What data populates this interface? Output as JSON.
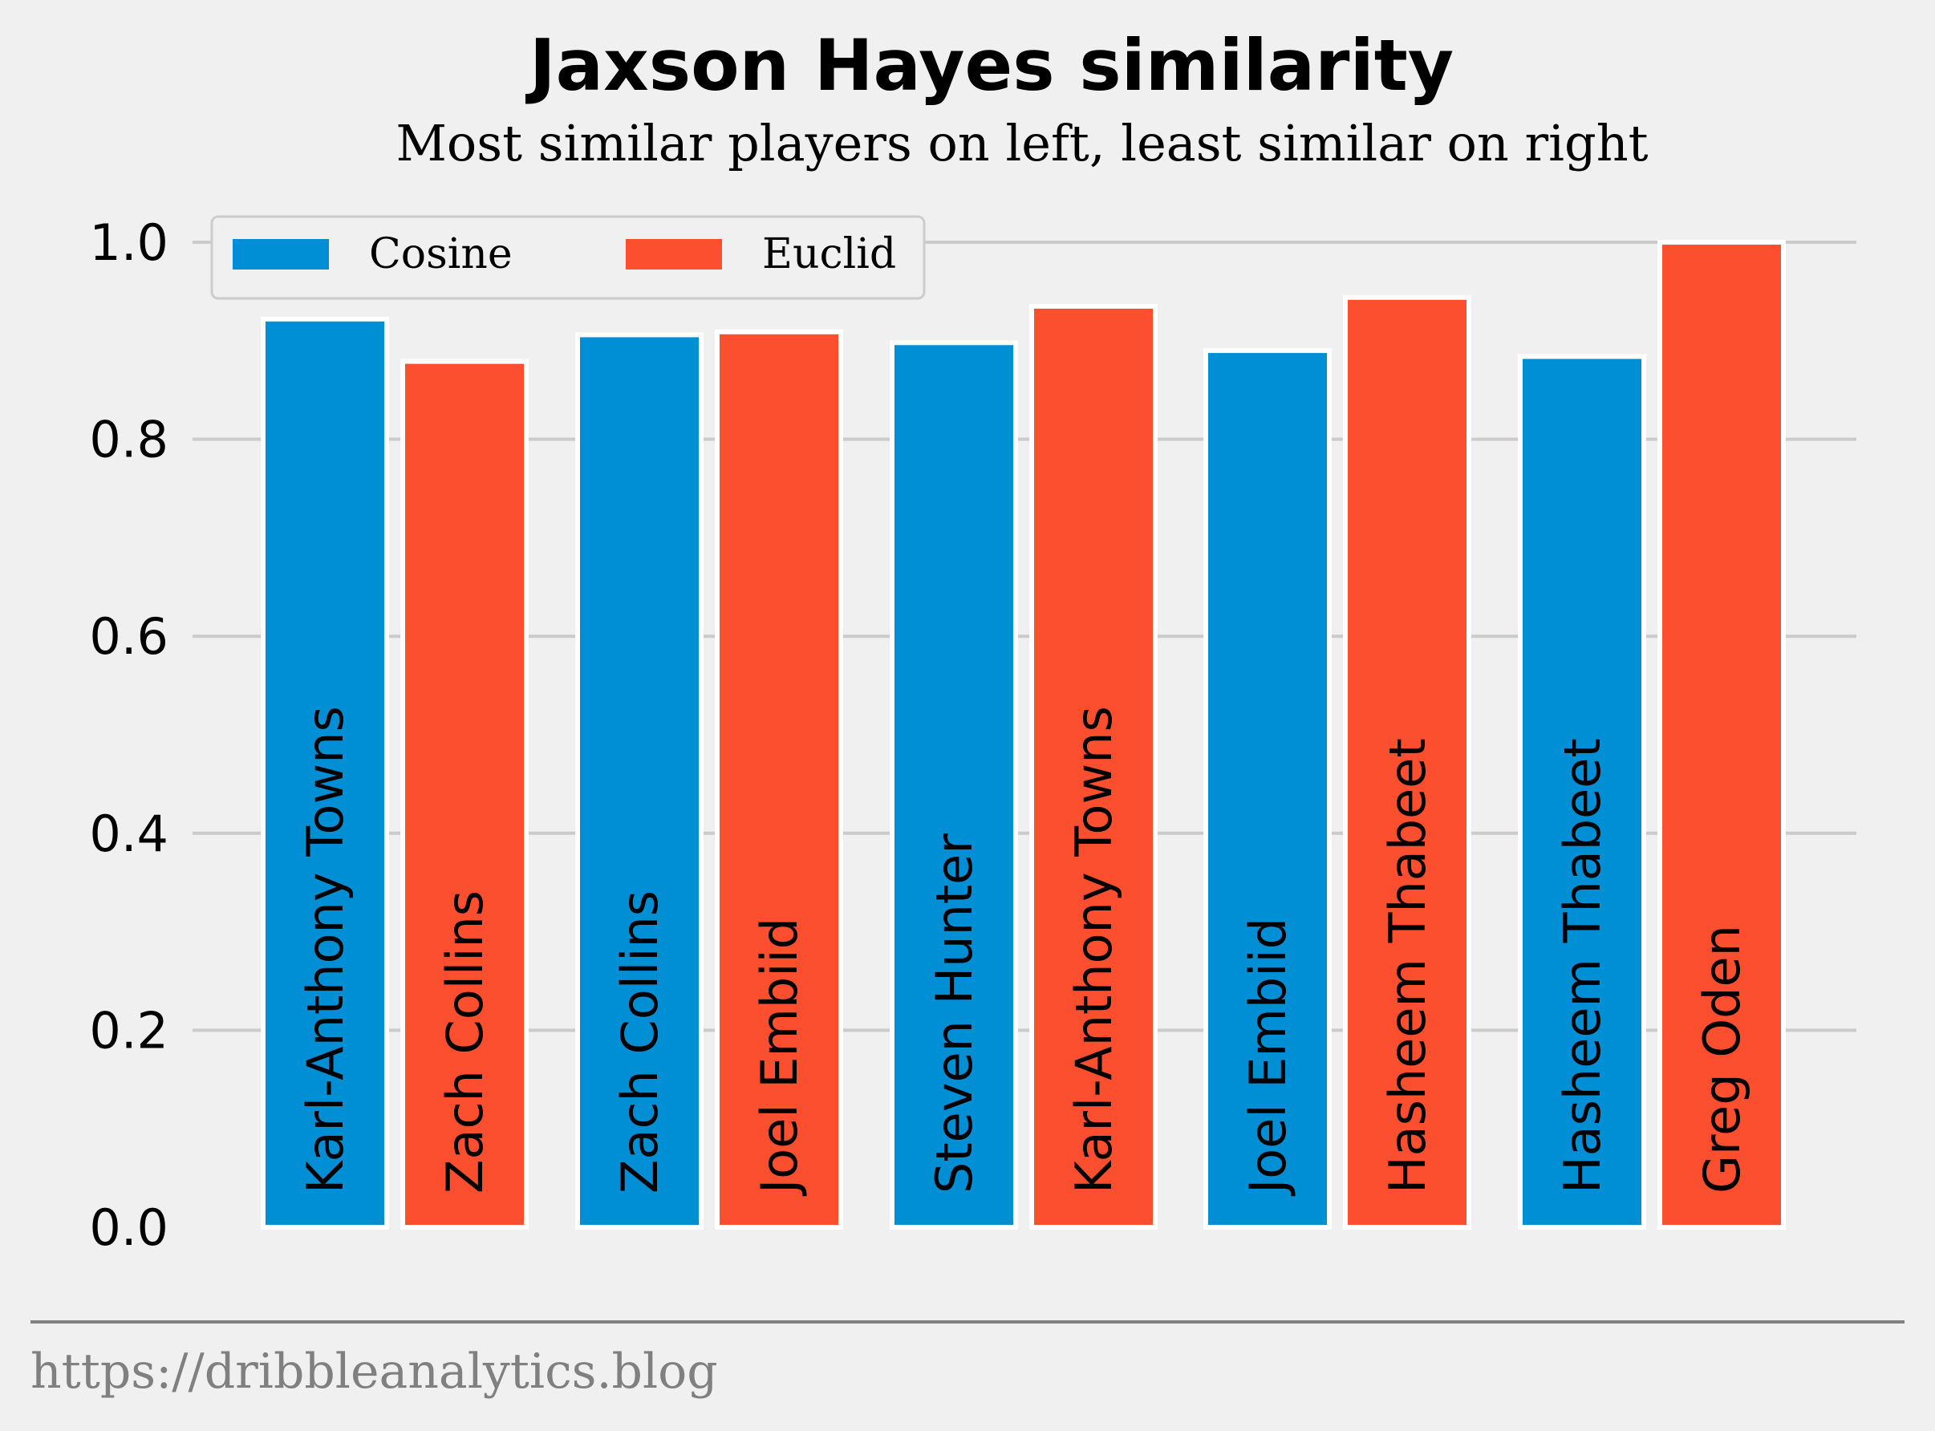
{
  "chart_data": {
    "type": "bar",
    "title": "Jaxson Hayes similarity",
    "subtitle": "Most similar players on left, least similar on right",
    "ylim": [
      0,
      1.0
    ],
    "yticks": [
      "0.0",
      "0.2",
      "0.4",
      "0.6",
      "0.8",
      "1.0"
    ],
    "grid": true,
    "legend": {
      "placement": "top-left"
    },
    "series": [
      {
        "name": "Cosine",
        "color": "#008fd5",
        "labels": [
          "Karl-Anthony Towns",
          "Zach Collins",
          "Steven Hunter",
          "Joel Embiid",
          "Hasheem Thabeet"
        ],
        "values": [
          0.922,
          0.906,
          0.898,
          0.89,
          0.884
        ]
      },
      {
        "name": "Euclid",
        "color": "#fc4f30",
        "labels": [
          "Zach Collins",
          "Joel Embiid",
          "Karl-Anthony Towns",
          "Hasheem Thabeet",
          "Greg Oden"
        ],
        "values": [
          0.879,
          0.909,
          0.935,
          0.944,
          1.0
        ]
      }
    ]
  },
  "footer": "https://dribbleanalytics.blog"
}
